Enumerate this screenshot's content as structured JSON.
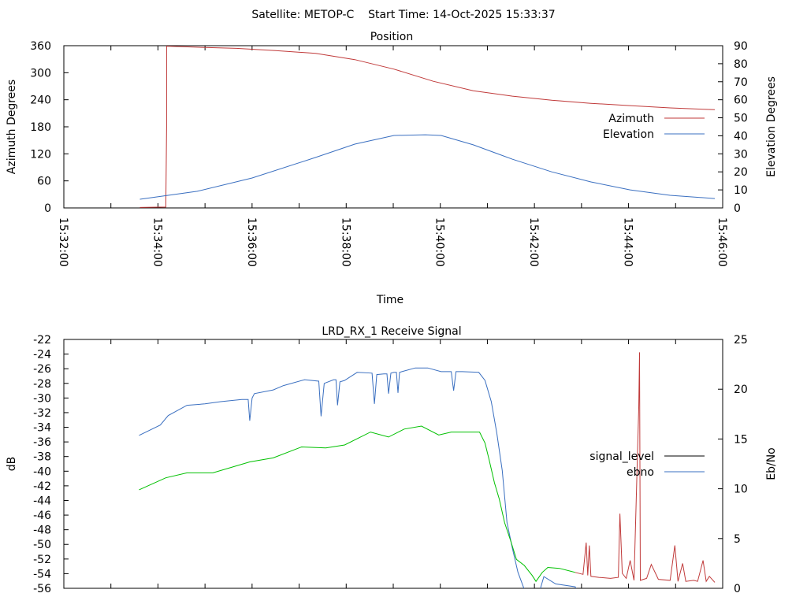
{
  "title": "Satellite: METOP-C    Start Time: 14-Oct-2025 15:33:37",
  "chart_data": [
    {
      "type": "line",
      "title": "Position",
      "xlabel": "Time",
      "ylabel": "Azimuth Degrees",
      "y2label": "Elevation Degrees",
      "xlim": [
        "15:32:00",
        "15:46:00"
      ],
      "xticks": [
        "15:32:00",
        "15:34:00",
        "15:36:00",
        "15:38:00",
        "15:40:00",
        "15:42:00",
        "15:44:00",
        "15:46:00"
      ],
      "ylim": [
        0,
        360
      ],
      "yticks": [
        "0",
        "60",
        "120",
        "180",
        "240",
        "300",
        "360"
      ],
      "y2lim": [
        0,
        90
      ],
      "y2ticks": [
        "0",
        "10",
        "20",
        "30",
        "40",
        "50",
        "60",
        "70",
        "80",
        "90"
      ],
      "legend_position": "right",
      "series": [
        {
          "name": "Azimuth",
          "axis": "y",
          "color": "#c03a3a",
          "points": [
            [
              "15:33:37",
              1
            ],
            [
              "15:34:10",
              2
            ],
            [
              "15:34:11",
              180
            ],
            [
              "15:34:11",
              359
            ],
            [
              "15:34:28",
              358
            ],
            [
              "15:35:00",
              356
            ],
            [
              "15:35:40",
              354
            ],
            [
              "15:36:30",
              349
            ],
            [
              "15:37:21",
              343
            ],
            [
              "15:38:11",
              329
            ],
            [
              "15:39:01",
              308
            ],
            [
              "15:39:51",
              281
            ],
            [
              "15:40:42",
              260
            ],
            [
              "15:41:32",
              248
            ],
            [
              "15:42:22",
              239
            ],
            [
              "15:43:12",
              232
            ],
            [
              "15:44:02",
              227
            ],
            [
              "15:44:53",
              222
            ],
            [
              "15:45:50",
              218
            ]
          ]
        },
        {
          "name": "Elevation",
          "axis": "y2",
          "color": "#3a6fc0",
          "points": [
            [
              "15:33:37",
              4.8
            ],
            [
              "15:34:50",
              9.2
            ],
            [
              "15:36:00",
              16.6
            ],
            [
              "15:37:21",
              28
            ],
            [
              "15:38:11",
              35.4
            ],
            [
              "15:39:01",
              40.2
            ],
            [
              "15:39:41",
              40.6
            ],
            [
              "15:40:01",
              40.2
            ],
            [
              "15:40:42",
              35
            ],
            [
              "15:41:32",
              27
            ],
            [
              "15:42:22",
              20
            ],
            [
              "15:43:12",
              14.4
            ],
            [
              "15:44:02",
              10
            ],
            [
              "15:44:53",
              7
            ],
            [
              "15:45:50",
              5.2
            ]
          ]
        }
      ]
    },
    {
      "type": "line",
      "title": "LRD_RX_1 Receive Signal",
      "ylabel": "dB",
      "y2label": "Eb/No",
      "xlim": [
        "15:32:00",
        "15:46:00"
      ],
      "ylim": [
        -56,
        -22
      ],
      "yticks": [
        "-56",
        "-54",
        "-52",
        "-50",
        "-48",
        "-46",
        "-44",
        "-42",
        "-40",
        "-38",
        "-36",
        "-34",
        "-32",
        "-30",
        "-28",
        "-26",
        "-24",
        "-22"
      ],
      "y2lim": [
        0,
        25
      ],
      "y2ticks": [
        "0",
        "5",
        "10",
        "15",
        "20",
        "25"
      ],
      "legend_position": "right",
      "legend": [
        {
          "name": "signal_level",
          "color": "#000000"
        },
        {
          "name": "ebno",
          "color": "#3a6fc0"
        }
      ],
      "series": [
        {
          "name": "signal_level",
          "axis": "y",
          "color": "#3a6fc0",
          "points": [
            [
              "15:33:36",
              -35.1
            ],
            [
              "15:34:03",
              -33.7
            ],
            [
              "15:34:13",
              -32.4
            ],
            [
              "15:34:37",
              -31.0
            ],
            [
              "15:35:00",
              -30.8
            ],
            [
              "15:35:20",
              -30.5
            ],
            [
              "15:35:47",
              -30.2
            ],
            [
              "15:35:55",
              -30.2
            ],
            [
              "15:35:57",
              -33.1
            ],
            [
              "15:36:00",
              -30.0
            ],
            [
              "15:36:03",
              -29.4
            ],
            [
              "15:36:27",
              -28.9
            ],
            [
              "15:36:40",
              -28.3
            ],
            [
              "15:37:07",
              -27.5
            ],
            [
              "15:37:25",
              -27.7
            ],
            [
              "15:37:28",
              -32.5
            ],
            [
              "15:37:32",
              -28.0
            ],
            [
              "15:37:44",
              -27.5
            ],
            [
              "15:37:47",
              -27.5
            ],
            [
              "15:37:49",
              -31.0
            ],
            [
              "15:37:52",
              -27.8
            ],
            [
              "15:37:58",
              -27.6
            ],
            [
              "15:38:14",
              -26.5
            ],
            [
              "15:38:33",
              -26.6
            ],
            [
              "15:38:36",
              -30.8
            ],
            [
              "15:38:39",
              -26.8
            ],
            [
              "15:38:48",
              -26.7
            ],
            [
              "15:38:52",
              -26.7
            ],
            [
              "15:38:54",
              -29.4
            ],
            [
              "15:38:57",
              -26.6
            ],
            [
              "15:39:01",
              -26.5
            ],
            [
              "15:39:04",
              -26.5
            ],
            [
              "15:39:06",
              -29.3
            ],
            [
              "15:39:08",
              -26.5
            ],
            [
              "15:39:11",
              -26.4
            ],
            [
              "15:39:28",
              -25.9
            ],
            [
              "15:39:44",
              -25.9
            ],
            [
              "15:40:01",
              -26.4
            ],
            [
              "15:40:14",
              -26.4
            ],
            [
              "15:40:17",
              -29.0
            ],
            [
              "15:40:20",
              -26.4
            ],
            [
              "15:40:28",
              -26.4
            ],
            [
              "15:40:49",
              -26.5
            ],
            [
              "15:40:57",
              -27.6
            ],
            [
              "15:41:05",
              -30.5
            ],
            [
              "15:41:12",
              -34.8
            ],
            [
              "15:41:19",
              -39.9
            ],
            [
              "15:41:25",
              -47.0
            ],
            [
              "15:41:32",
              -50.6
            ],
            [
              "15:41:39",
              -53.8
            ],
            [
              "15:41:50",
              -57
            ],
            null,
            [
              "15:42:05",
              -57
            ],
            [
              "15:42:12",
              -54.4
            ],
            [
              "15:42:27",
              -55.4
            ],
            [
              "15:42:52",
              -55.8
            ],
            [
              "15:42:57",
              -57
            ]
          ]
        },
        {
          "name": "ebno",
          "axis": "y2",
          "segments": [
            {
              "color": "#00c000",
              "points": [
                [
                  "15:33:36",
                  9.9
                ],
                [
                  "15:34:10",
                  11.1
                ],
                [
                  "15:34:37",
                  11.6
                ],
                [
                  "15:35:10",
                  11.6
                ],
                [
                  "15:35:57",
                  12.7
                ],
                [
                  "15:36:27",
                  13.1
                ],
                [
                  "15:37:03",
                  14.2
                ],
                [
                  "15:37:34",
                  14.1
                ],
                [
                  "15:37:58",
                  14.4
                ],
                [
                  "15:38:31",
                  15.7
                ],
                [
                  "15:38:54",
                  15.2
                ],
                [
                  "15:39:14",
                  16.0
                ],
                [
                  "15:39:36",
                  16.3
                ],
                [
                  "15:39:58",
                  15.4
                ],
                [
                  "15:40:14",
                  15.7
                ],
                [
                  "15:40:50",
                  15.7
                ],
                [
                  "15:40:57",
                  14.6
                ],
                [
                  "15:41:02",
                  13.0
                ],
                [
                  "15:41:09",
                  10.6
                ],
                [
                  "15:41:15",
                  9.0
                ],
                [
                  "15:41:22",
                  6.6
                ],
                [
                  "15:41:30",
                  4.7
                ],
                [
                  "15:41:37",
                  2.9
                ],
                [
                  "15:41:47",
                  2.3
                ],
                [
                  "15:41:57",
                  1.3
                ],
                [
                  "15:42:02",
                  0.7
                ],
                [
                  "15:42:10",
                  1.6
                ],
                [
                  "15:42:17",
                  2.1
                ],
                [
                  "15:42:32",
                  2.0
                ],
                [
                  "15:42:47",
                  1.7
                ],
                [
                  "15:42:52",
                  1.6
                ]
              ]
            },
            {
              "color": "#c03a3a",
              "points": [
                [
                  "15:42:52",
                  1.6
                ],
                [
                  "15:43:02",
                  1.4
                ],
                [
                  "15:43:06",
                  4.6
                ],
                [
                  "15:43:08",
                  1.3
                ],
                [
                  "15:43:10",
                  4.3
                ],
                [
                  "15:43:12",
                  1.2
                ],
                [
                  "15:43:22",
                  1.1
                ],
                [
                  "15:43:37",
                  1.0
                ],
                [
                  "15:43:47",
                  1.1
                ],
                [
                  "15:43:49",
                  7.5
                ],
                [
                  "15:43:52",
                  1.5
                ],
                [
                  "15:43:57",
                  1.0
                ],
                [
                  "15:44:02",
                  2.8
                ],
                [
                  "15:44:07",
                  0.8
                ],
                [
                  "15:44:13",
                  18.1
                ],
                [
                  "15:44:14",
                  23.7
                ],
                [
                  "15:44:15",
                  0.8
                ],
                [
                  "15:44:23",
                  1.0
                ],
                [
                  "15:44:29",
                  2.4
                ],
                [
                  "15:44:38",
                  0.9
                ],
                [
                  "15:44:53",
                  0.8
                ],
                [
                  "15:44:59",
                  4.3
                ],
                [
                  "15:45:03",
                  0.7
                ],
                [
                  "15:45:09",
                  2.5
                ],
                [
                  "15:45:13",
                  0.7
                ],
                [
                  "15:45:23",
                  0.8
                ],
                [
                  "15:45:28",
                  0.7
                ],
                [
                  "15:45:35",
                  2.8
                ],
                [
                  "15:45:39",
                  0.7
                ],
                [
                  "15:45:43",
                  1.2
                ],
                [
                  "15:45:50",
                  0.6
                ]
              ]
            }
          ]
        }
      ]
    }
  ]
}
